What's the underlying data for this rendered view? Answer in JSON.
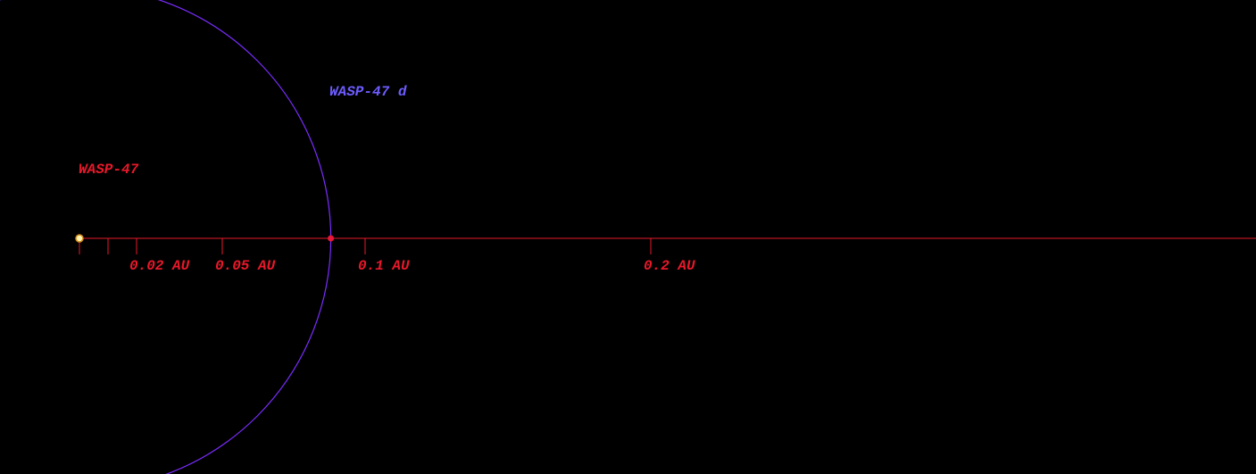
{
  "colors": {
    "background": "#000000",
    "axis": "#e8182a",
    "orbit": "#7a2cff",
    "planet_label": "#6c5cff",
    "star_label": "#e8182a",
    "star_fill": "#fff3b0",
    "star_outline": "#d08a1a",
    "planet_marker": "#e8183a"
  },
  "star": {
    "name": "WASP-47",
    "icon": "star-dot"
  },
  "planets": [
    {
      "name": "WASP-47 d",
      "semi_major_axis_au": 0.088,
      "icon": "planet-dot"
    }
  ],
  "scale": {
    "unit": "AU",
    "labeled_ticks": [
      {
        "value": 0.02,
        "label": "0.02 AU"
      },
      {
        "value": 0.05,
        "label": "0.05 AU"
      },
      {
        "value": 0.1,
        "label": "0.1 AU"
      },
      {
        "value": 0.2,
        "label": "0.2 AU"
      }
    ],
    "unlabeled_ticks": [
      0,
      0.01
    ]
  }
}
